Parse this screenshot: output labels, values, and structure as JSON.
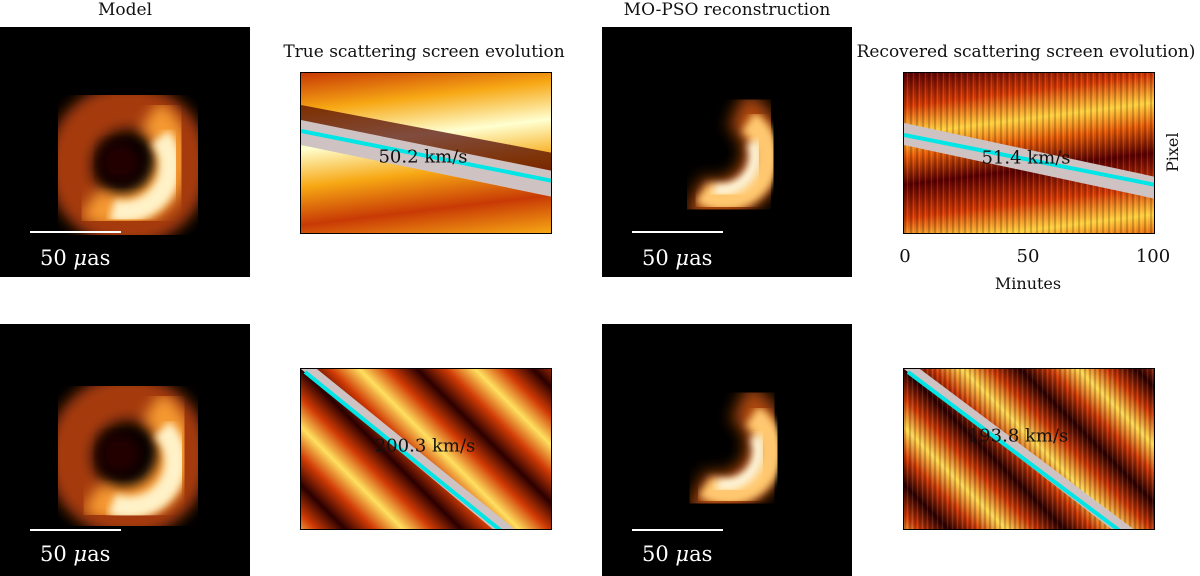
{
  "titles": {
    "model": "Model",
    "true_screen": "True scattering screen evolution",
    "reconstruction": "MO-PSO reconstruction",
    "recovered_screen": "Recovered scattering screen evolution)"
  },
  "scale_bar": {
    "value": "50",
    "unit": "as",
    "symbol": "μ"
  },
  "velocities": {
    "true_row1": "50.2 km/s",
    "recovered_row1": "51.4 km/s",
    "true_row2": "200.3 km/s",
    "recovered_row2": "193.8 km/s"
  },
  "axes": {
    "xlabel": "Minutes",
    "ylabel": "Pixel",
    "xticks": [
      "0",
      "50",
      "100"
    ]
  },
  "colors": {
    "fit_line": "#00e5e5",
    "band": "#cccccc",
    "colormap": "afmhot"
  }
}
